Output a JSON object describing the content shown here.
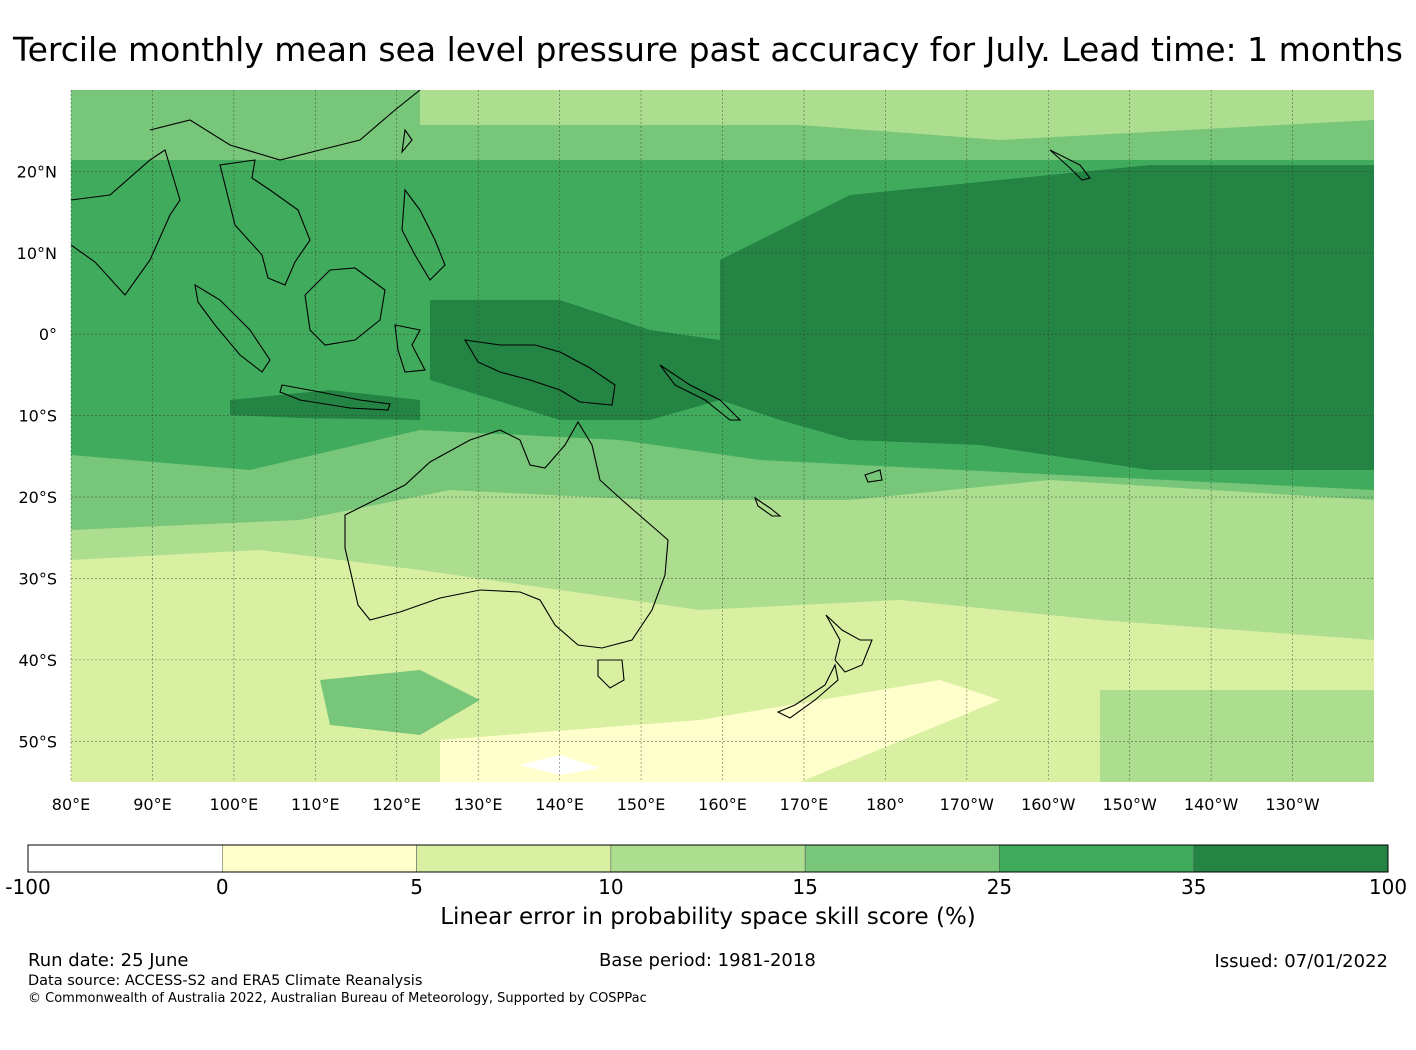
{
  "title": "Tercile monthly mean sea level pressure past accuracy for July. Lead time: 1 months",
  "map": {
    "lat_range": [
      -55,
      30
    ],
    "lon_range": [
      80,
      240
    ],
    "lat_ticks": [
      {
        "value": 20,
        "label": "20°N"
      },
      {
        "value": 10,
        "label": "10°N"
      },
      {
        "value": 0,
        "label": "0°"
      },
      {
        "value": -10,
        "label": "10°S"
      },
      {
        "value": -20,
        "label": "20°S"
      },
      {
        "value": -30,
        "label": "30°S"
      },
      {
        "value": -40,
        "label": "40°S"
      },
      {
        "value": -50,
        "label": "50°S"
      }
    ],
    "lon_ticks": [
      {
        "value": 80,
        "label": "80°E"
      },
      {
        "value": 90,
        "label": "90°E"
      },
      {
        "value": 100,
        "label": "100°E"
      },
      {
        "value": 110,
        "label": "110°E"
      },
      {
        "value": 120,
        "label": "120°E"
      },
      {
        "value": 130,
        "label": "130°E"
      },
      {
        "value": 140,
        "label": "140°E"
      },
      {
        "value": 150,
        "label": "150°E"
      },
      {
        "value": 160,
        "label": "160°E"
      },
      {
        "value": 170,
        "label": "170°E"
      },
      {
        "value": 180,
        "label": "180°"
      },
      {
        "value": 190,
        "label": "170°W"
      },
      {
        "value": 200,
        "label": "160°W"
      },
      {
        "value": 210,
        "label": "150°W"
      },
      {
        "value": 220,
        "label": "140°W"
      },
      {
        "value": 230,
        "label": "130°W"
      }
    ]
  },
  "colorbar": {
    "boundaries": [
      "-100",
      "0",
      "5",
      "10",
      "15",
      "25",
      "35",
      "100"
    ],
    "colors": [
      "#ffffff",
      "#ffffcc",
      "#d9f0a3",
      "#addd8e",
      "#78c679",
      "#41ab5d",
      "#238443"
    ],
    "label": "Linear error in probability space skill score (%)"
  },
  "footer": {
    "run_date": "Run date: 25 June",
    "base_period": "Base period: 1981-2018",
    "issued": "Issued: 07/01/2022",
    "data_source": "Data source: ACCESS-S2 and ERA5 Climate Reanalysis",
    "copyright": "© Commonwealth of Australia 2022, Australian Bureau of Meteorology, Supported by COSPPac"
  }
}
